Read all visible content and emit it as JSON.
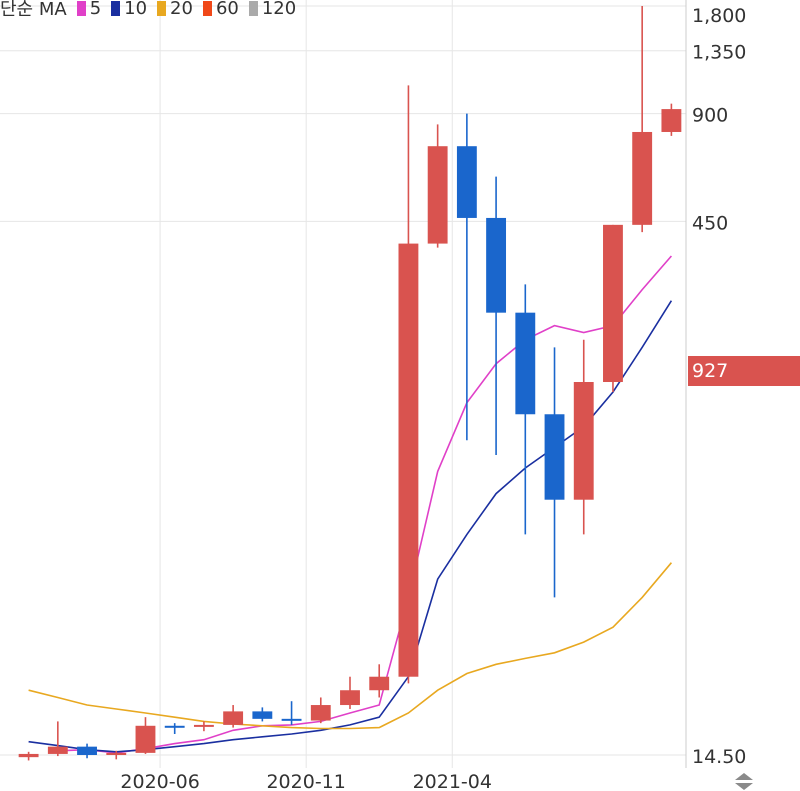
{
  "legend": {
    "title": "단순 MA",
    "items": [
      {
        "label": "5",
        "color": "#e040c8"
      },
      {
        "label": "10",
        "color": "#1a2fa0"
      },
      {
        "label": "20",
        "color": "#e8a820"
      },
      {
        "label": "60",
        "color": "#f04818"
      },
      {
        "label": "120",
        "color": "#aaaaaa"
      }
    ]
  },
  "current_price": {
    "label": "927",
    "color": "#d9534f"
  },
  "colors": {
    "up": "#d9534f",
    "down": "#1a66cc",
    "grid": "#e6e6e6",
    "axis_text": "#333333"
  },
  "chart_data": {
    "type": "candlestick",
    "y_axis": {
      "scale": "log",
      "ticks": [
        14.5,
        450,
        900,
        1350,
        1800
      ],
      "tick_labels": [
        "14.50",
        "450",
        "900",
        "1,350",
        "1,800"
      ],
      "position": "right"
    },
    "x_axis": {
      "tick_labels": [
        "2020-06",
        "2020-11",
        "2021-04"
      ],
      "tick_after_candle": [
        4.5,
        9.5,
        14.5
      ]
    },
    "grid": true,
    "candles": [
      {
        "o": 14.3,
        "h": 14.8,
        "l": 14.0,
        "c": 14.6
      },
      {
        "o": 14.6,
        "h": 18.0,
        "l": 14.4,
        "c": 15.3
      },
      {
        "o": 15.3,
        "h": 15.6,
        "l": 14.2,
        "c": 14.5
      },
      {
        "o": 14.5,
        "h": 14.9,
        "l": 14.1,
        "c": 14.7
      },
      {
        "o": 14.7,
        "h": 18.5,
        "l": 14.6,
        "c": 17.5
      },
      {
        "o": 17.5,
        "h": 17.8,
        "l": 16.6,
        "c": 17.4
      },
      {
        "o": 17.4,
        "h": 18.0,
        "l": 16.9,
        "c": 17.6
      },
      {
        "o": 17.6,
        "h": 20.0,
        "l": 17.3,
        "c": 19.2
      },
      {
        "o": 19.2,
        "h": 19.7,
        "l": 18.0,
        "c": 18.3
      },
      {
        "o": 18.3,
        "h": 20.5,
        "l": 17.6,
        "c": 18.1
      },
      {
        "o": 18.1,
        "h": 21.0,
        "l": 17.8,
        "c": 20.0
      },
      {
        "o": 20.0,
        "h": 24.0,
        "l": 19.5,
        "c": 22.0
      },
      {
        "o": 22.0,
        "h": 26.0,
        "l": 21.0,
        "c": 24.0
      },
      {
        "o": 24.0,
        "h": 1080,
        "l": 23.0,
        "c": 390
      },
      {
        "o": 390,
        "h": 840,
        "l": 380,
        "c": 730
      },
      {
        "o": 730,
        "h": 900,
        "l": 110,
        "c": 460
      },
      {
        "o": 460,
        "h": 600,
        "l": 100,
        "c": 250
      },
      {
        "o": 250,
        "h": 300,
        "l": 60,
        "c": 130
      },
      {
        "o": 130,
        "h": 200,
        "l": 40,
        "c": 75
      },
      {
        "o": 75,
        "h": 210,
        "l": 60,
        "c": 160
      },
      {
        "o": 160,
        "h": 440,
        "l": 150,
        "c": 440
      },
      {
        "o": 440,
        "h": 1800,
        "l": 420,
        "c": 800
      },
      {
        "o": 800,
        "h": 960,
        "l": 780,
        "c": 927
      }
    ],
    "moving_averages": [
      {
        "period": "5",
        "values": [
          null,
          14.9,
          15.0,
          14.7,
          15.1,
          15.6,
          16.0,
          17.0,
          17.5,
          17.6,
          18.0,
          19.0,
          20.0,
          40.0,
          90.0,
          140.0,
          180.0,
          210.0,
          230.0,
          220.0,
          230.0,
          290.0,
          360.0
        ]
      },
      {
        "period": "10",
        "values": [
          15.8,
          15.4,
          15.0,
          14.8,
          15.0,
          15.3,
          15.6,
          16.0,
          16.3,
          16.6,
          17.0,
          17.6,
          18.5,
          24.0,
          45.0,
          60.0,
          78.0,
          92.0,
          105.0,
          120.0,
          150.0,
          200.0,
          270.0
        ]
      },
      {
        "period": "20",
        "values": [
          22.0,
          21.0,
          20.0,
          19.5,
          19.0,
          18.5,
          18.0,
          17.7,
          17.5,
          17.3,
          17.2,
          17.2,
          17.3,
          19.0,
          22.0,
          24.5,
          26.0,
          27.0,
          28.0,
          30.0,
          33.0,
          40.0,
          50.0
        ]
      }
    ]
  }
}
